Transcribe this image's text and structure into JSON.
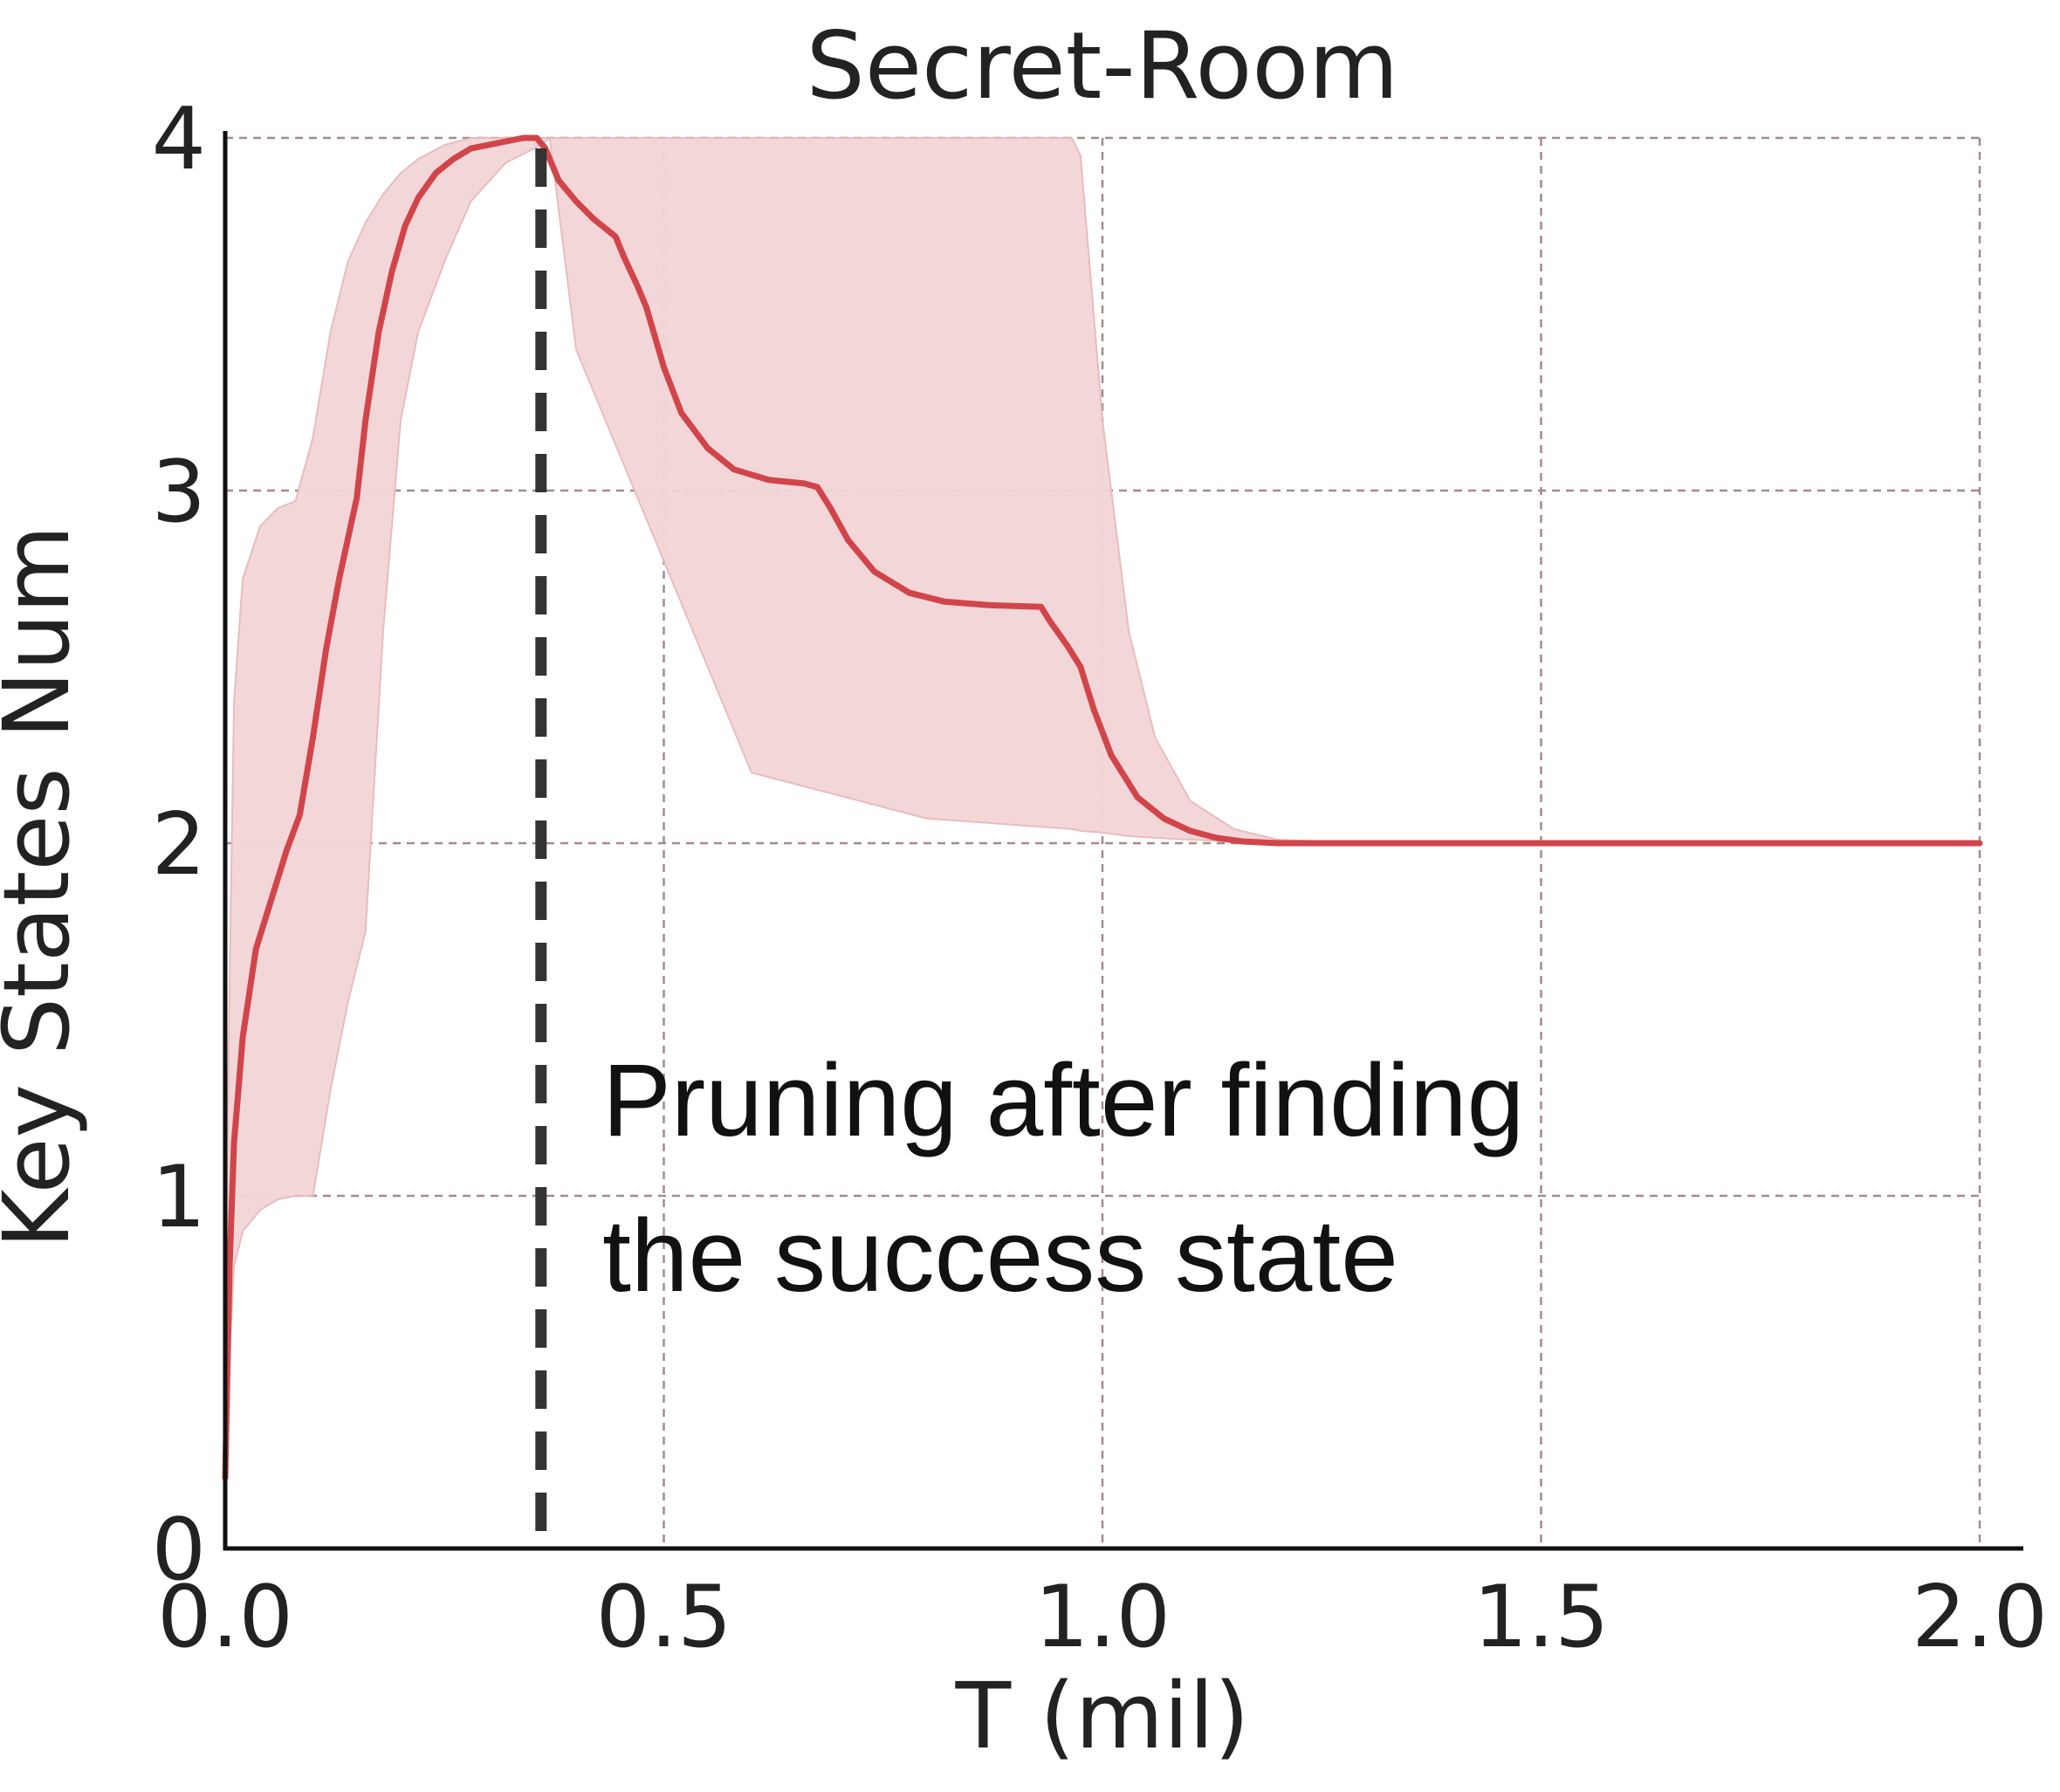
{
  "chart_data": {
    "type": "line",
    "title": "Secret-Room",
    "xlabel": "T (mil)",
    "ylabel": "Key States Num",
    "xlim": [
      0.0,
      2.0
    ],
    "ylim": [
      0,
      4
    ],
    "x_ticks": [
      0.0,
      0.5,
      1.0,
      1.5,
      2.0
    ],
    "x_tick_labels": [
      "0.0",
      "0.5",
      "1.0",
      "1.5",
      "2.0"
    ],
    "y_ticks": [
      0,
      1,
      2,
      3,
      4
    ],
    "y_tick_labels": [
      "0",
      "1",
      "2",
      "3",
      "4"
    ],
    "grid": true,
    "series": [
      {
        "color": "#d1454a",
        "x": [
          0.0,
          0.005,
          0.01,
          0.02,
          0.035,
          0.05,
          0.07,
          0.085,
          0.1,
          0.115,
          0.13,
          0.15,
          0.16,
          0.175,
          0.19,
          0.205,
          0.22,
          0.24,
          0.26,
          0.28,
          0.3,
          0.32,
          0.34,
          0.355,
          0.365,
          0.38,
          0.4,
          0.42,
          0.435,
          0.445,
          0.455,
          0.47,
          0.48,
          0.5,
          0.52,
          0.55,
          0.58,
          0.62,
          0.66,
          0.675,
          0.69,
          0.71,
          0.74,
          0.78,
          0.82,
          0.87,
          0.93,
          0.94,
          0.96,
          0.975,
          0.99,
          1.01,
          1.04,
          1.07,
          1.1,
          1.13,
          1.16,
          1.2,
          1.25,
          1.3,
          1.5,
          1.75,
          2.0
        ],
        "y": [
          0.2,
          0.8,
          1.15,
          1.45,
          1.7,
          1.82,
          1.98,
          2.08,
          2.3,
          2.55,
          2.75,
          2.98,
          3.2,
          3.45,
          3.62,
          3.75,
          3.83,
          3.9,
          3.94,
          3.97,
          3.98,
          3.99,
          4.0,
          4.0,
          3.97,
          3.88,
          3.82,
          3.77,
          3.74,
          3.72,
          3.66,
          3.58,
          3.52,
          3.35,
          3.22,
          3.12,
          3.06,
          3.03,
          3.02,
          3.01,
          2.95,
          2.86,
          2.77,
          2.71,
          2.685,
          2.675,
          2.67,
          2.63,
          2.56,
          2.5,
          2.38,
          2.25,
          2.13,
          2.07,
          2.035,
          2.015,
          2.005,
          2.0,
          2.0,
          2.0,
          2.0,
          2.0,
          2.0
        ]
      }
    ],
    "band": {
      "color": "#f3d5d6",
      "x": [
        0.0,
        0.005,
        0.01,
        0.02,
        0.04,
        0.06,
        0.08,
        0.1,
        0.12,
        0.14,
        0.16,
        0.18,
        0.2,
        0.22,
        0.25,
        0.28,
        0.32,
        0.36,
        0.37,
        0.4,
        0.6,
        0.8,
        0.965,
        0.975,
        1.0,
        1.03,
        1.06,
        1.1,
        1.15,
        1.2,
        1.3,
        1.5,
        2.0
      ],
      "upper": [
        0.7,
        1.6,
        2.4,
        2.75,
        2.9,
        2.95,
        2.97,
        3.15,
        3.45,
        3.65,
        3.76,
        3.84,
        3.9,
        3.94,
        3.98,
        4.0,
        4.0,
        4.0,
        4.0,
        4.0,
        4.0,
        4.0,
        4.0,
        3.95,
        3.2,
        2.6,
        2.3,
        2.12,
        2.04,
        2.01,
        2.0,
        2.0,
        2.0
      ],
      "lower": [
        0.05,
        0.55,
        0.8,
        0.9,
        0.96,
        0.99,
        1.0,
        1.0,
        1.3,
        1.55,
        1.75,
        2.6,
        3.2,
        3.45,
        3.65,
        3.82,
        3.93,
        3.98,
        4.0,
        3.4,
        2.2,
        2.07,
        2.04,
        2.035,
        2.03,
        2.02,
        2.015,
        2.01,
        2.005,
        2.0,
        2.0,
        2.0,
        2.0
      ]
    },
    "vertical_marker": {
      "x": 0.36,
      "color": "#333333"
    },
    "annotation": {
      "lines": [
        "Pruning after finding",
        "the success state"
      ],
      "x": 0.43,
      "y": 1.27
    }
  }
}
